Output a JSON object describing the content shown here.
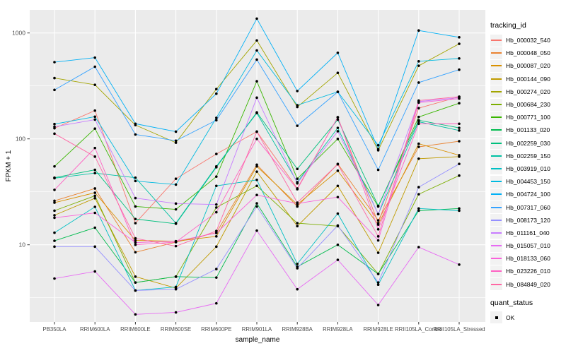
{
  "chart_data": {
    "type": "line",
    "title": "",
    "xlabel": "sample_name",
    "ylabel": "FPKM + 1",
    "yscale": "log10",
    "ylim": [
      1.86,
      1660
    ],
    "y_ticks": [
      10,
      100,
      1000
    ],
    "y_minor": [
      3.162,
      31.62,
      316.2
    ],
    "grid": "on",
    "legend_position": "right",
    "colors": {
      "panel_bg": "#EBEBEB",
      "grid": "#FFFFFF",
      "tick_text": "#4D4D4D",
      "axis_title": "#000000",
      "point": "#000000"
    },
    "legend": {
      "tracking_title": "tracking_id",
      "status_title": "quant_status",
      "status_label": "OK"
    },
    "x": [
      "PB350LA",
      "RRIM600LA",
      "RRIM600LE",
      "RRIM600SE",
      "RRIM600PE",
      "RRIM901LA",
      "RRIM928BA",
      "RRIM928LA",
      "RRIM928LE",
      "RRII105LA_Control",
      "RRII105LA_Stressed"
    ],
    "series": [
      {
        "name": "Hb_000032_540",
        "color": "#F8766D",
        "values": [
          126,
          185,
          16,
          42,
          72,
          117,
          34,
          160,
          16,
          195,
          250
        ]
      },
      {
        "name": "Hb_000048_050",
        "color": "#EA8331",
        "values": [
          26,
          34,
          8.5,
          10.6,
          13,
          57,
          23,
          58,
          17,
          84,
          95
        ]
      },
      {
        "name": "Hb_000087_020",
        "color": "#D89000",
        "values": [
          25,
          31,
          11,
          10.8,
          12,
          55,
          24,
          50,
          15.5,
          90,
          70
        ]
      },
      {
        "name": "Hb_000144_090",
        "color": "#C09B00",
        "values": [
          19,
          27.5,
          5,
          3.9,
          9.6,
          49,
          15,
          36,
          8.4,
          65,
          68
        ]
      },
      {
        "name": "Hb_000274_020",
        "color": "#A3A500",
        "values": [
          375,
          324,
          135,
          92,
          295,
          850,
          200,
          420,
          78,
          490,
          790
        ]
      },
      {
        "name": "Hb_000684_230",
        "color": "#7CAE00",
        "values": [
          21,
          29,
          4.4,
          5,
          22.5,
          36,
          16,
          15,
          5.3,
          30,
          45
        ]
      },
      {
        "name": "Hb_000771_100",
        "color": "#39B600",
        "values": [
          55,
          125,
          23,
          21.6,
          44,
          350,
          42,
          100,
          23,
          161,
          217
        ]
      },
      {
        "name": "Hb_001133_020",
        "color": "#00BB4E",
        "values": [
          10.9,
          14.5,
          4.4,
          5,
          4.9,
          24.6,
          6.2,
          10,
          5.3,
          21,
          22
        ]
      },
      {
        "name": "Hb_002259_030",
        "color": "#00BF7D",
        "values": [
          43,
          51,
          17.5,
          15.8,
          54,
          178,
          52,
          152,
          23.3,
          150,
          127
        ]
      },
      {
        "name": "Hb_002259_150",
        "color": "#00C1A3",
        "values": [
          42.5,
          47.5,
          43,
          16,
          55,
          175,
          39,
          127,
          19.5,
          145,
          120
        ]
      },
      {
        "name": "Hb_003919_010",
        "color": "#00BFC4",
        "values": [
          13,
          22.8,
          3.7,
          4,
          36,
          41,
          6.6,
          19.7,
          4.2,
          22,
          21
        ]
      },
      {
        "name": "Hb_004453_150",
        "color": "#00BAE0",
        "values": [
          138,
          162,
          40,
          37,
          158,
          684,
          208,
          278,
          87,
          540,
          575
        ]
      },
      {
        "name": "Hb_004724_100",
        "color": "#00B0F6",
        "values": [
          530,
          585,
          139,
          117,
          267,
          1365,
          283,
          650,
          80,
          1055,
          910
        ]
      },
      {
        "name": "Hb_007317_060",
        "color": "#35A2FF",
        "values": [
          290,
          480,
          110,
          96,
          150,
          560,
          133,
          278,
          51,
          340,
          450
        ]
      },
      {
        "name": "Hb_008173_120",
        "color": "#9590FF",
        "values": [
          9.6,
          9.6,
          3.7,
          3.8,
          5.9,
          23,
          6,
          15.2,
          4.4,
          35,
          58
        ]
      },
      {
        "name": "Hb_011161_040",
        "color": "#C77CFF",
        "values": [
          130,
          152,
          27.6,
          24.5,
          24,
          245,
          38,
          118,
          19.5,
          225,
          245
        ]
      },
      {
        "name": "Hb_015057_010",
        "color": "#E76BF3",
        "values": [
          4.8,
          5.6,
          2.2,
          2.3,
          2.8,
          13.6,
          3.8,
          7.2,
          2.7,
          9.5,
          6.5
        ]
      },
      {
        "name": "Hb_018133_060",
        "color": "#FA62DB",
        "values": [
          18,
          20,
          10.5,
          10.8,
          12.9,
          29.5,
          24.5,
          28.2,
          11,
          220,
          240
        ]
      },
      {
        "name": "Hb_023226_010",
        "color": "#FF61C3",
        "values": [
          33,
          82,
          10,
          10.6,
          20.3,
          100,
          33.5,
          160,
          14,
          139,
          139
        ]
      },
      {
        "name": "Hb_084849_020",
        "color": "#FF67A4",
        "values": [
          112,
          68,
          11.5,
          9.7,
          13.5,
          117,
          25,
          57.5,
          12,
          230,
          250
        ]
      }
    ]
  }
}
